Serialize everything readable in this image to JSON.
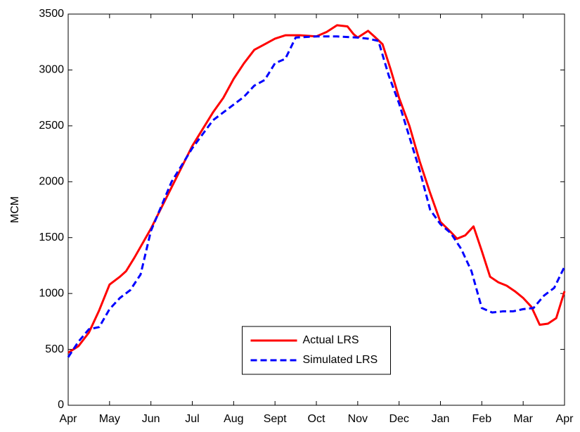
{
  "chart_data": {
    "type": "line",
    "ylabel": "MCM",
    "xlim": [
      0,
      12
    ],
    "xticks": [
      {
        "value": 0,
        "label": "Apr"
      },
      {
        "value": 1,
        "label": "May"
      },
      {
        "value": 2,
        "label": "Jun"
      },
      {
        "value": 3,
        "label": "Jul"
      },
      {
        "value": 4,
        "label": "Aug"
      },
      {
        "value": 5,
        "label": "Sept"
      },
      {
        "value": 6,
        "label": "Oct"
      },
      {
        "value": 7,
        "label": "Nov"
      },
      {
        "value": 8,
        "label": "Dec"
      },
      {
        "value": 9,
        "label": "Jan"
      },
      {
        "value": 10,
        "label": "Feb"
      },
      {
        "value": 11,
        "label": "Mar"
      },
      {
        "value": 12,
        "label": "Apr"
      }
    ],
    "ylim": [
      0,
      3500
    ],
    "yticks": [
      0,
      500,
      1000,
      1500,
      2000,
      2500,
      3000,
      3500
    ],
    "grid": false,
    "legend": "lower center",
    "series": [
      {
        "name": "Actual LRS",
        "color": "#ff0000",
        "dash": false,
        "x": [
          0,
          0.25,
          0.5,
          0.75,
          1.0,
          1.25,
          1.4,
          1.6,
          2.0,
          2.5,
          3.0,
          3.5,
          3.75,
          4.0,
          4.25,
          4.5,
          4.75,
          5.0,
          5.25,
          5.6,
          6.0,
          6.25,
          6.5,
          6.75,
          6.9,
          7.0,
          7.25,
          7.4,
          7.6,
          7.8,
          8.0,
          8.25,
          8.5,
          8.75,
          9.0,
          9.25,
          9.4,
          9.6,
          9.8,
          10.0,
          10.2,
          10.4,
          10.6,
          10.8,
          11.0,
          11.2,
          11.4,
          11.6,
          11.8,
          12.0
        ],
        "values": [
          470,
          530,
          650,
          850,
          1080,
          1150,
          1200,
          1320,
          1580,
          1950,
          2320,
          2620,
          2750,
          2920,
          3060,
          3180,
          3230,
          3280,
          3310,
          3310,
          3300,
          3340,
          3400,
          3390,
          3320,
          3290,
          3350,
          3300,
          3230,
          3000,
          2750,
          2500,
          2180,
          1900,
          1640,
          1550,
          1490,
          1520,
          1600,
          1380,
          1150,
          1100,
          1070,
          1020,
          960,
          880,
          720,
          730,
          780,
          1020
        ]
      },
      {
        "name": "Simulated LRS",
        "color": "#0000ff",
        "dash": true,
        "x": [
          0,
          0.25,
          0.5,
          0.75,
          1.0,
          1.25,
          1.5,
          1.75,
          2.0,
          2.5,
          3.0,
          3.5,
          4.0,
          4.25,
          4.5,
          4.75,
          5.0,
          5.25,
          5.5,
          6.0,
          6.5,
          7.0,
          7.25,
          7.5,
          7.75,
          8.0,
          8.25,
          8.5,
          8.75,
          9.0,
          9.25,
          9.5,
          9.75,
          10.0,
          10.25,
          10.5,
          10.75,
          11.0,
          11.25,
          11.5,
          11.75,
          12.0
        ],
        "values": [
          430,
          570,
          680,
          700,
          860,
          960,
          1030,
          1170,
          1560,
          2000,
          2300,
          2550,
          2690,
          2760,
          2860,
          2910,
          3060,
          3100,
          3290,
          3300,
          3300,
          3290,
          3280,
          3260,
          2950,
          2700,
          2400,
          2100,
          1750,
          1620,
          1540,
          1400,
          1200,
          870,
          830,
          840,
          840,
          860,
          870,
          980,
          1050,
          1240
        ]
      }
    ]
  }
}
